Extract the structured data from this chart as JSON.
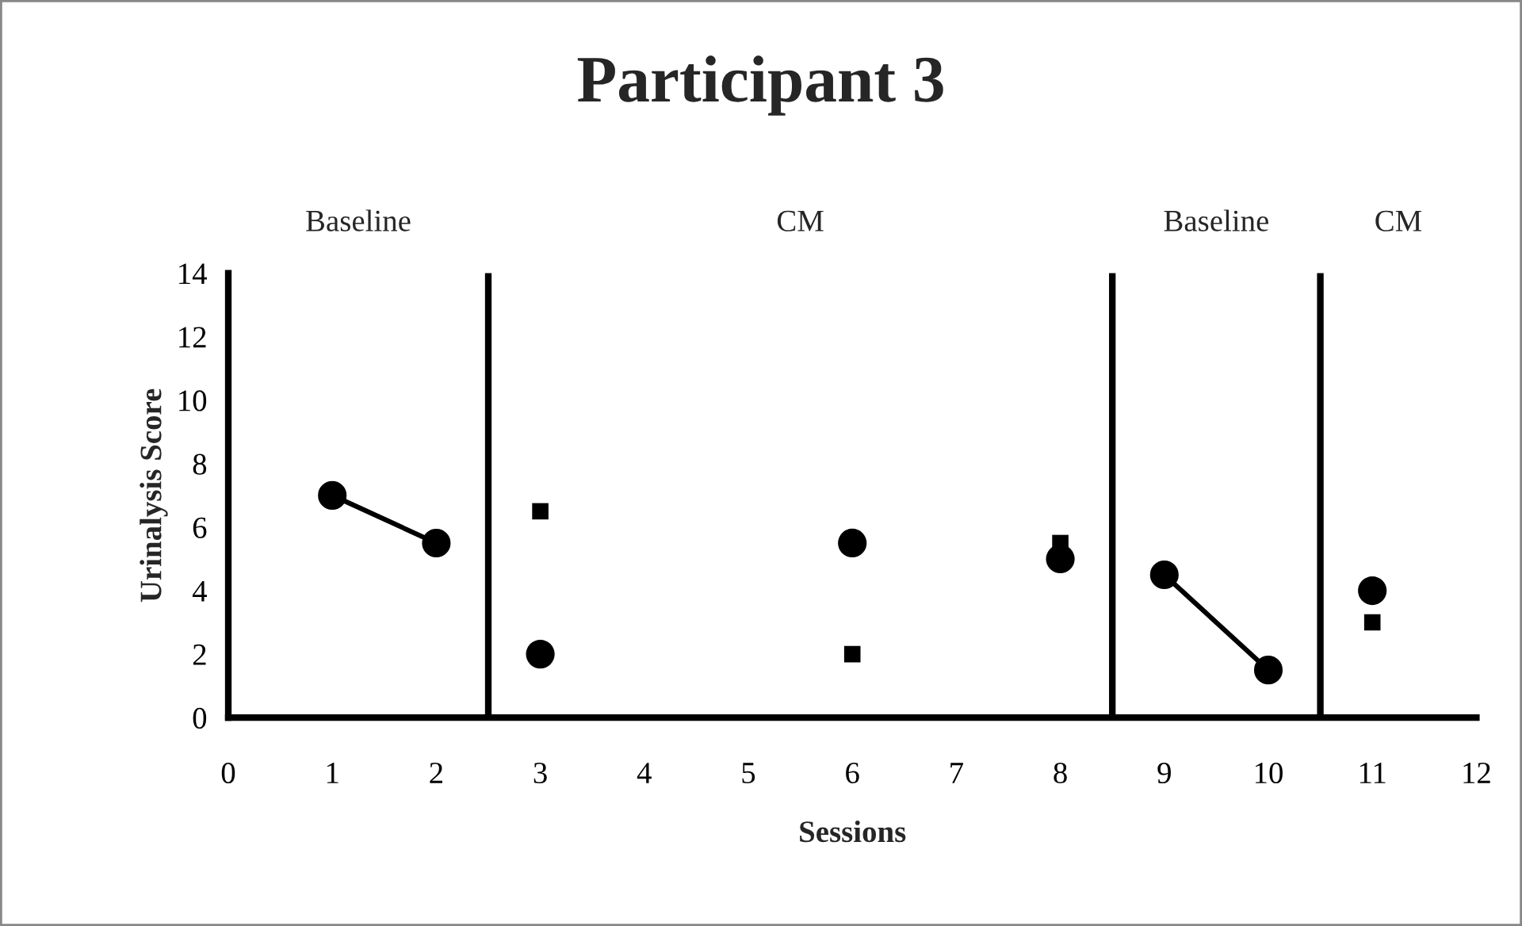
{
  "chart_data": {
    "type": "line",
    "title": "Participant 3",
    "xlabel": "Sessions",
    "ylabel": "Urinalysis Score",
    "xlim": [
      0,
      12
    ],
    "xticks": [
      0,
      1,
      2,
      3,
      4,
      5,
      6,
      7,
      8,
      9,
      10,
      11,
      12
    ],
    "ylim": [
      0,
      14
    ],
    "yticks": [
      0,
      2,
      4,
      6,
      8,
      10,
      12,
      14
    ],
    "grid": false,
    "legend": false,
    "marker": "circle",
    "series": [
      {
        "color": "#000000",
        "x": [
          1,
          2
        ],
        "values": [
          7,
          5.5
        ]
      },
      {
        "type": "scatter",
        "color": "#000000",
        "x": [
          3,
          6,
          8
        ],
        "values": [
          2,
          5.5,
          5
        ]
      },
      {
        "color": "#000000",
        "x": [
          9,
          10
        ],
        "values": [
          4.5,
          1.5
        ]
      },
      {
        "type": "scatter",
        "color": "#000000",
        "x": [
          11
        ],
        "values": [
          4
        ]
      },
      {
        "type": "scatter",
        "color": "#000000",
        "marker": "square",
        "x": [
          3,
          6,
          8,
          11
        ],
        "values": [
          6.5,
          2,
          5.5,
          3
        ]
      }
    ],
    "ref_lines": [
      {
        "axis": "x",
        "value": 2.5,
        "color": "#000000"
      },
      {
        "axis": "x",
        "value": 8.5,
        "color": "#000000"
      },
      {
        "axis": "x",
        "value": 10.5,
        "color": "#000000"
      }
    ],
    "annotations": [
      "Baseline",
      "CM",
      "Baseline",
      "CM"
    ]
  }
}
